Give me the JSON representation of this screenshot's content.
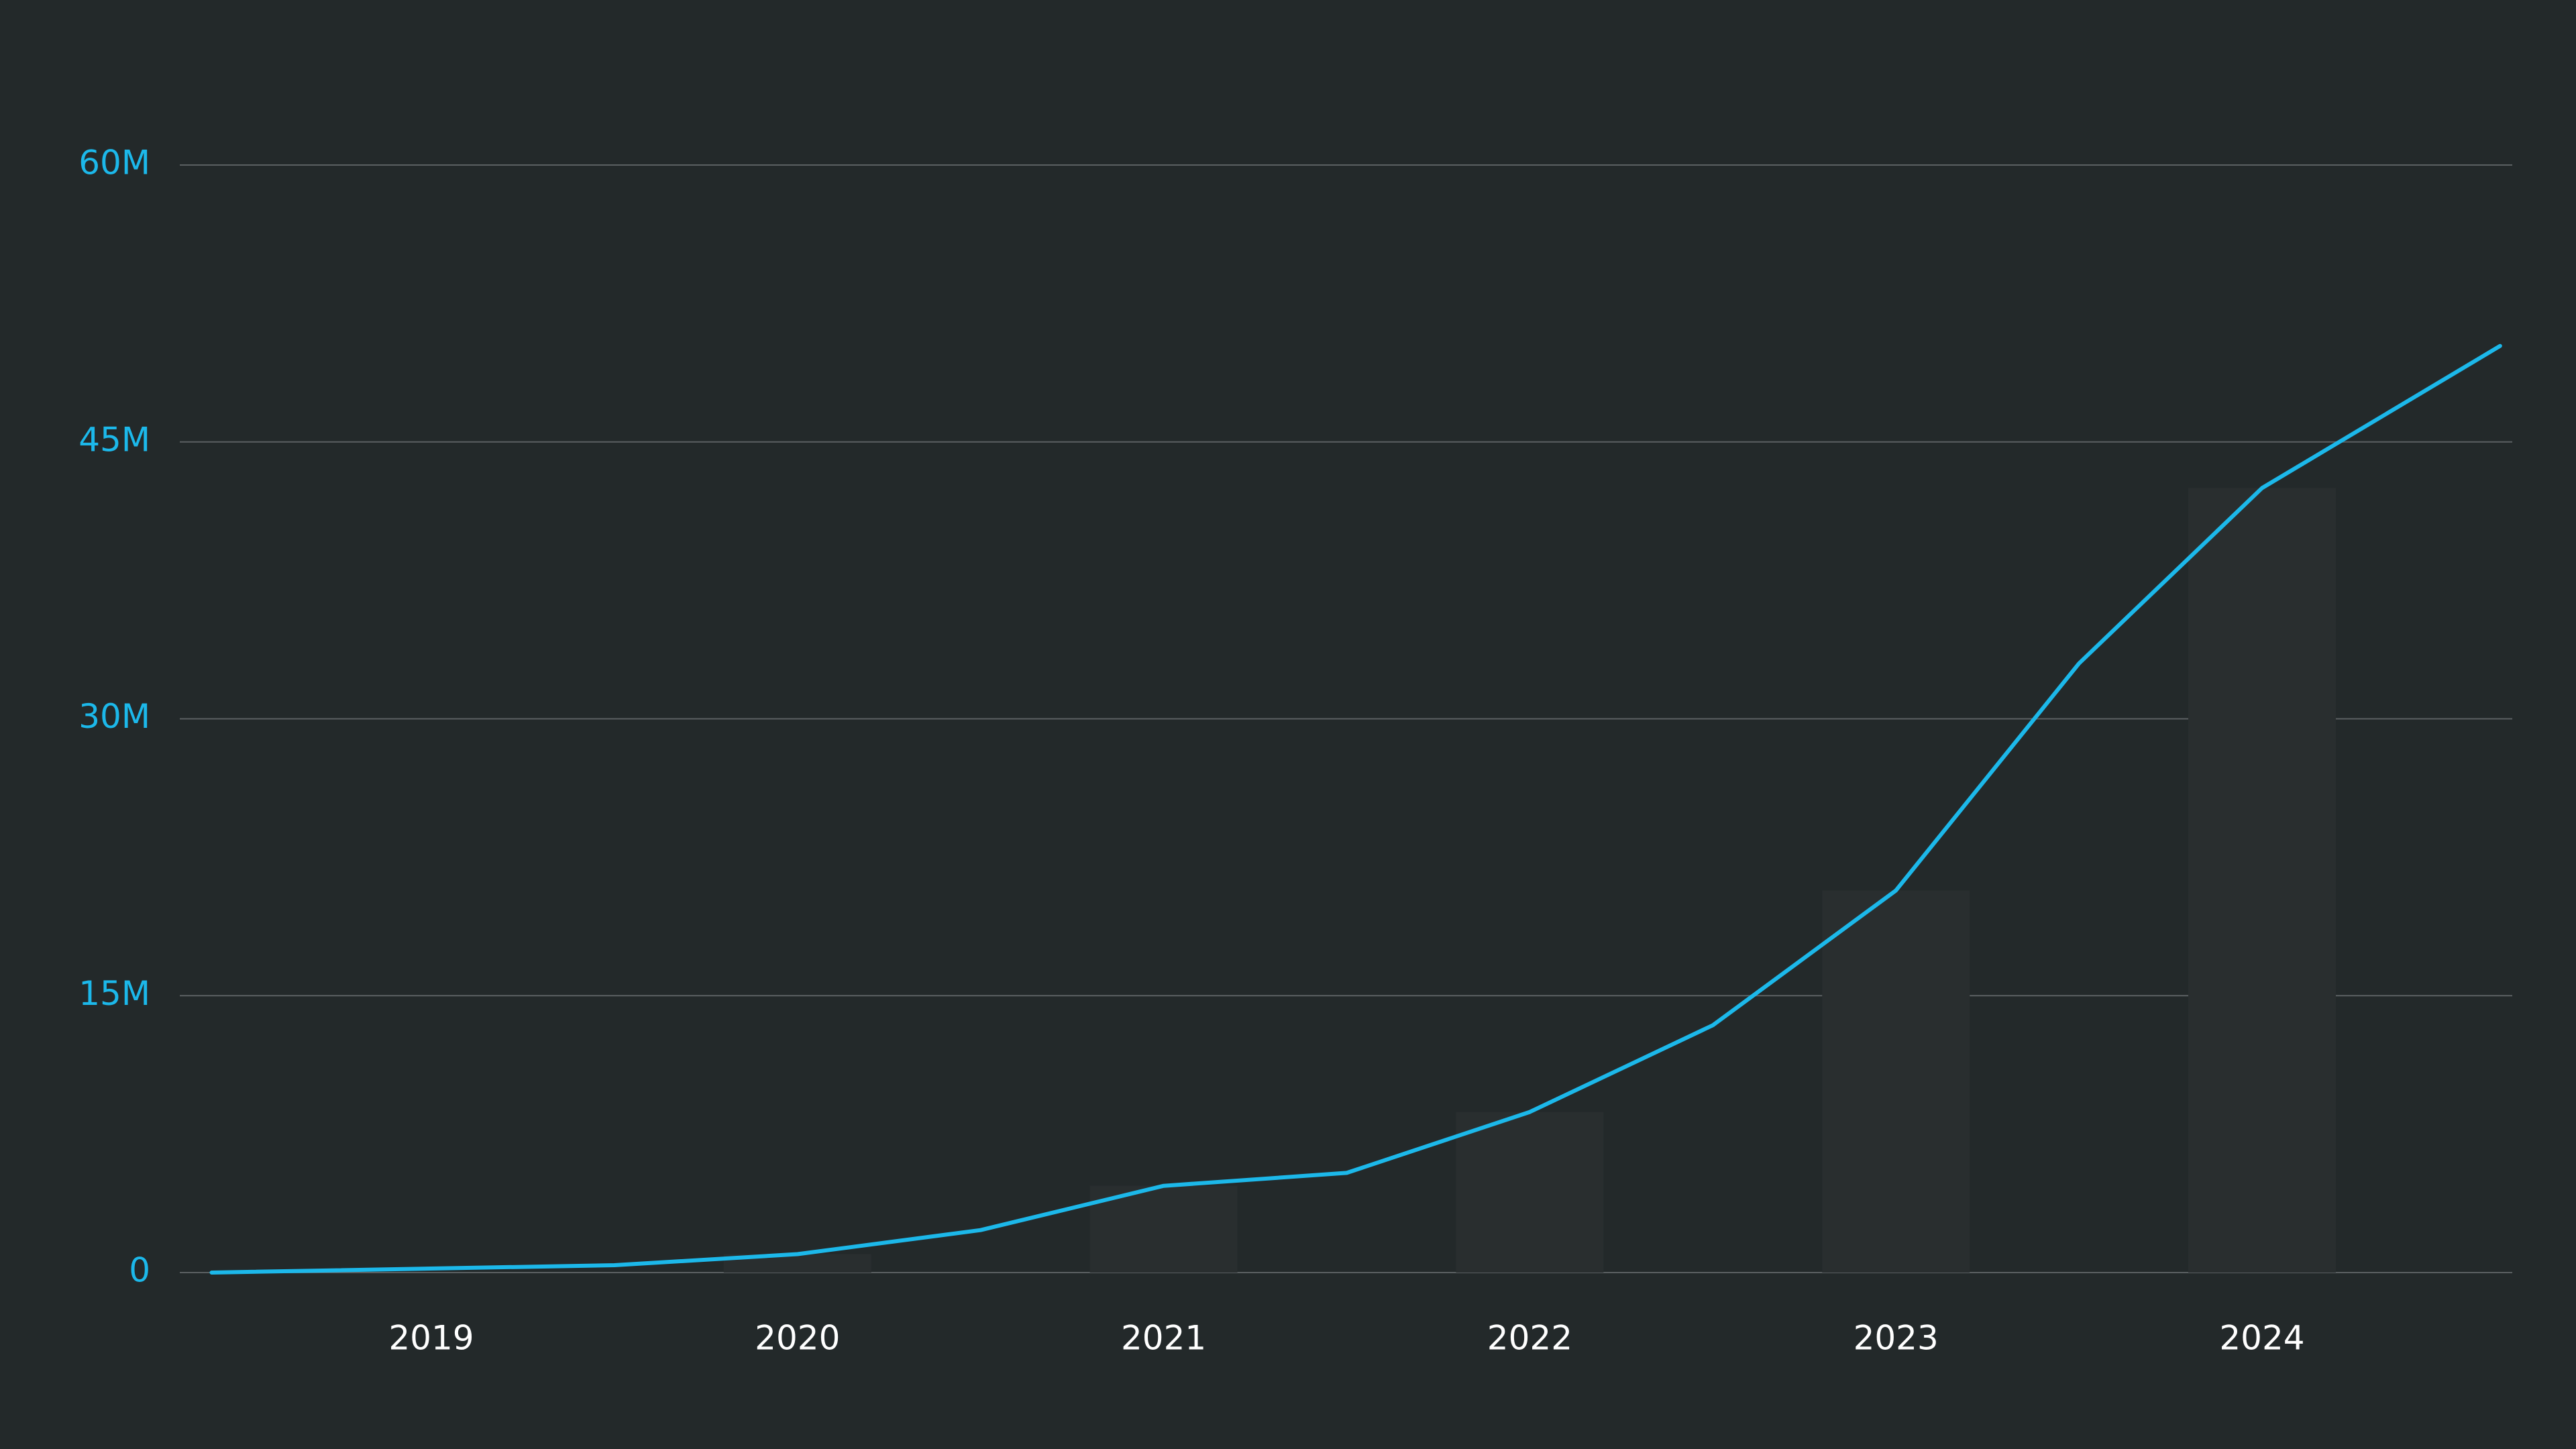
{
  "chart_data": {
    "type": "line",
    "title": "",
    "xlabel": "",
    "ylabel": "",
    "ylim": [
      0,
      60000000
    ],
    "y_ticks": [
      {
        "value": 0,
        "label": "0"
      },
      {
        "value": 15000000,
        "label": "15M"
      },
      {
        "value": 30000000,
        "label": "30M"
      },
      {
        "value": 45000000,
        "label": "45M"
      },
      {
        "value": 60000000,
        "label": "60M"
      }
    ],
    "x_ticks": [
      {
        "value": 2019,
        "label": "2019"
      },
      {
        "value": 2020,
        "label": "2020"
      },
      {
        "value": 2021,
        "label": "2021"
      },
      {
        "value": 2022,
        "label": "2022"
      },
      {
        "value": 2023,
        "label": "2023"
      },
      {
        "value": 2024,
        "label": "2024"
      }
    ],
    "xlim": [
      2018.4,
      2024.75
    ],
    "grid": true,
    "legend": "none",
    "series": [
      {
        "type": "line",
        "color": "#1cb8ea",
        "x": [
          2018.4,
          2019.5,
          2020.0,
          2020.5,
          2021.0,
          2021.5,
          2022.0,
          2022.5,
          2023.0,
          2023.5,
          2024.0,
          2024.65
        ],
        "y": [
          0,
          400000,
          1000000,
          2300000,
          4700000,
          5400000,
          8700000,
          13400000,
          20700000,
          33000000,
          42500000,
          50200000
        ]
      },
      {
        "type": "bar",
        "color": "#292e2f",
        "x": [
          2019,
          2020,
          2021,
          2022,
          2023,
          2024
        ],
        "y": [
          0,
          1000000,
          4700000,
          8700000,
          20700000,
          42500000
        ]
      }
    ]
  }
}
